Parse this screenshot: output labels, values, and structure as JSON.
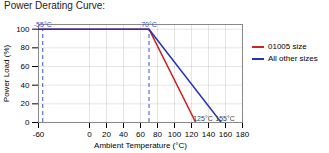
{
  "chart_data": {
    "type": "line",
    "title": "Power Derating Curve:",
    "xlabel": "Ambient Temperature (°C)",
    "ylabel": "Power Load (%)",
    "xlim": [
      -60,
      180
    ],
    "ylim": [
      0,
      105
    ],
    "xticks": [
      -60,
      0,
      20,
      40,
      60,
      80,
      100,
      120,
      140,
      160,
      180
    ],
    "yticks": [
      0,
      20,
      40,
      60,
      80,
      100
    ],
    "grid": true,
    "legend": "right",
    "series": [
      {
        "name": "01005 size",
        "color": "#cc2222",
        "x": [
          -60,
          70,
          125
        ],
        "values": [
          100,
          100,
          0
        ]
      },
      {
        "name": "All other sizes",
        "color": "#2233bb",
        "x": [
          -60,
          70,
          155
        ],
        "values": [
          100,
          100,
          0
        ]
      }
    ],
    "vlines": {
      "x": [
        -55,
        70
      ],
      "y": [
        0,
        100
      ],
      "color": "#3355cc",
      "line_style": "dashed"
    },
    "annotations": [
      {
        "text": "-55°C",
        "x": -55,
        "y": 102,
        "color": "#3355cc"
      },
      {
        "text": "70°C",
        "x": 70,
        "y": 102,
        "color": "#3355cc"
      },
      {
        "text": "125°C",
        "x": 122,
        "y": 2
      },
      {
        "text": "155°C",
        "x": 148,
        "y": 2
      }
    ]
  }
}
